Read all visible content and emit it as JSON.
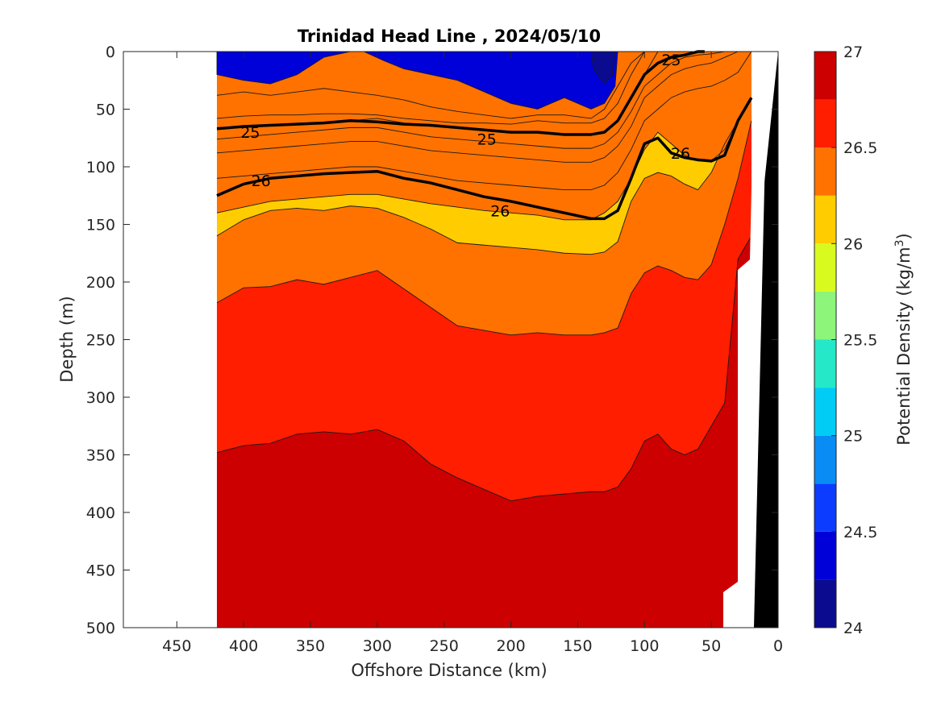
{
  "chart_data": {
    "type": "contour",
    "title": "Trinidad Head Line , 2024/05/10",
    "xlabel": "Offshore Distance (km)",
    "ylabel": "Depth (m)",
    "xlim": [
      490,
      0
    ],
    "ylim": [
      0,
      500
    ],
    "x_reversed": true,
    "y_reversed": true,
    "x_ticks": [
      450,
      400,
      350,
      300,
      250,
      200,
      150,
      100,
      50,
      0
    ],
    "y_ticks": [
      0,
      50,
      100,
      150,
      200,
      250,
      300,
      350,
      400,
      450,
      500
    ],
    "data_x_range": [
      420,
      20
    ],
    "colorbar": {
      "label": "Potential Density (kg/m",
      "label_superscript": "3",
      "label_suffix": ")",
      "min": 24,
      "max": 27,
      "tick_values": [
        24,
        24.5,
        25,
        25.5,
        26,
        26.5,
        27
      ],
      "tick_labels": [
        "24",
        "24.5",
        "25",
        "25.5",
        "26",
        "26.5",
        "27"
      ],
      "bands": [
        {
          "from": 24.0,
          "to": 24.25,
          "color": "#0b0b8f"
        },
        {
          "from": 24.25,
          "to": 24.5,
          "color": "#0000d8"
        },
        {
          "from": 24.5,
          "to": 24.75,
          "color": "#0c3cff"
        },
        {
          "from": 24.75,
          "to": 25.0,
          "color": "#0a8cf5"
        },
        {
          "from": 25.0,
          "to": 25.25,
          "color": "#00ccf5"
        },
        {
          "from": 25.25,
          "to": 25.5,
          "color": "#25e8c8"
        },
        {
          "from": 25.5,
          "to": 25.75,
          "color": "#8cf57a"
        },
        {
          "from": 25.75,
          "to": 26.0,
          "color": "#d8fa1e"
        },
        {
          "from": 26.0,
          "to": 26.25,
          "color": "#ffcc00"
        },
        {
          "from": 26.25,
          "to": 26.5,
          "color": "#ff7200"
        },
        {
          "from": 26.5,
          "to": 26.75,
          "color": "#ff1e00"
        },
        {
          "from": 26.75,
          "to": 27.0,
          "color": "#cc0000"
        }
      ]
    },
    "contour_levels": [
      {
        "level": 24.75,
        "color": "#0a8cf5",
        "x": [
          420,
          400,
          380,
          360,
          340,
          320,
          300,
          280,
          260,
          240,
          220,
          200,
          180,
          160,
          140,
          130,
          120,
          110,
          100,
          95
        ],
        "y": [
          38,
          35,
          38,
          35,
          32,
          35,
          38,
          42,
          48,
          52,
          55,
          58,
          55,
          55,
          58,
          50,
          30,
          10,
          0,
          0
        ]
      },
      {
        "level": 25.0,
        "color": "#00ccf5",
        "x": [
          420,
          400,
          380,
          360,
          340,
          320,
          300,
          280,
          260,
          240,
          220,
          200,
          180,
          160,
          140,
          130,
          120,
          110,
          100,
          95
        ],
        "y": [
          58,
          56,
          55,
          55,
          54,
          54,
          55,
          58,
          60,
          62,
          62,
          63,
          60,
          62,
          62,
          58,
          45,
          20,
          0,
          0
        ]
      },
      {
        "level": 25.25,
        "color": "#25e8c8",
        "x": [
          420,
          400,
          380,
          360,
          340,
          320,
          300,
          280,
          260,
          240,
          220,
          200,
          180,
          160,
          140,
          130,
          120,
          110,
          100,
          90,
          80,
          70,
          60,
          50,
          40,
          30,
          20
        ],
        "y": [
          66,
          65,
          64,
          62,
          62,
          60,
          58,
          62,
          64,
          66,
          68,
          70,
          70,
          72,
          72,
          70,
          60,
          40,
          20,
          0,
          0,
          0,
          0,
          0,
          0,
          0,
          0
        ]
      },
      {
        "level": 25.5,
        "color": "#8cf57a",
        "x": [
          420,
          400,
          380,
          360,
          340,
          320,
          300,
          280,
          260,
          240,
          220,
          200,
          180,
          160,
          140,
          130,
          120,
          110,
          100,
          90,
          80,
          70,
          60,
          50,
          40,
          30,
          20
        ],
        "y": [
          76,
          74,
          72,
          70,
          68,
          66,
          66,
          70,
          74,
          76,
          78,
          80,
          82,
          84,
          84,
          80,
          70,
          52,
          30,
          20,
          10,
          5,
          3,
          2,
          0,
          0,
          0
        ]
      },
      {
        "level": 25.75,
        "color": "#d8fa1e",
        "x": [
          420,
          400,
          380,
          360,
          340,
          320,
          300,
          280,
          260,
          240,
          220,
          200,
          180,
          160,
          140,
          130,
          120,
          110,
          100,
          90,
          80,
          70,
          60,
          50,
          40,
          30,
          20
        ],
        "y": [
          88,
          86,
          84,
          82,
          80,
          78,
          78,
          82,
          86,
          88,
          90,
          92,
          94,
          96,
          96,
          92,
          82,
          65,
          40,
          30,
          20,
          15,
          12,
          10,
          5,
          0,
          0
        ]
      },
      {
        "level": 26.0,
        "color": "#ffcc00",
        "x": [
          420,
          400,
          380,
          360,
          340,
          320,
          300,
          280,
          260,
          240,
          220,
          200,
          180,
          160,
          140,
          130,
          120,
          110,
          100,
          90,
          80,
          70,
          60,
          50,
          40,
          30,
          20
        ],
        "y": [
          110,
          108,
          106,
          104,
          102,
          100,
          100,
          104,
          108,
          112,
          114,
          116,
          118,
          120,
          120,
          116,
          105,
          85,
          60,
          50,
          40,
          35,
          32,
          30,
          25,
          18,
          0
        ]
      },
      {
        "level": 26.25,
        "color": "#ff7200",
        "x": [
          420,
          400,
          380,
          360,
          340,
          320,
          300,
          280,
          260,
          240,
          220,
          200,
          180,
          160,
          140,
          130,
          120,
          110,
          100,
          90,
          80,
          70,
          60,
          50,
          40,
          30,
          20
        ],
        "y": [
          140,
          135,
          130,
          128,
          126,
          124,
          124,
          128,
          132,
          135,
          138,
          140,
          142,
          146,
          146,
          140,
          130,
          110,
          85,
          70,
          80,
          90,
          95,
          95,
          85,
          60,
          40
        ]
      }
    ],
    "bold_contours": [
      {
        "level": 25,
        "x": [
          420,
          400,
          380,
          360,
          340,
          320,
          300,
          280,
          260,
          240,
          220,
          200,
          180,
          160,
          140,
          130,
          120,
          110,
          100,
          90,
          80,
          70,
          60,
          55
        ],
        "y": [
          67,
          65,
          64,
          63,
          62,
          60,
          61,
          63,
          64,
          66,
          68,
          70,
          70,
          72,
          72,
          70,
          60,
          40,
          20,
          10,
          5,
          3,
          0,
          0
        ]
      },
      {
        "level": 26,
        "x": [
          420,
          400,
          380,
          360,
          340,
          320,
          300,
          280,
          260,
          240,
          220,
          200,
          180,
          160,
          140,
          130,
          120,
          110,
          100,
          90,
          80,
          70,
          60,
          50,
          40,
          30,
          20
        ],
        "y": [
          125,
          115,
          110,
          108,
          106,
          105,
          104,
          110,
          114,
          120,
          126,
          130,
          135,
          140,
          145,
          145,
          138,
          110,
          80,
          75,
          88,
          92,
          94,
          95,
          90,
          60,
          40
        ]
      }
    ],
    "contour_labels": [
      {
        "text": "25",
        "x": 395,
        "y": 70
      },
      {
        "text": "25",
        "x": 218,
        "y": 76
      },
      {
        "text": "25",
        "x": 80,
        "y": 7
      },
      {
        "text": "26",
        "x": 387,
        "y": 112
      },
      {
        "text": "26",
        "x": 208,
        "y": 138
      },
      {
        "text": "26",
        "x": 73,
        "y": 88
      }
    ]
  }
}
